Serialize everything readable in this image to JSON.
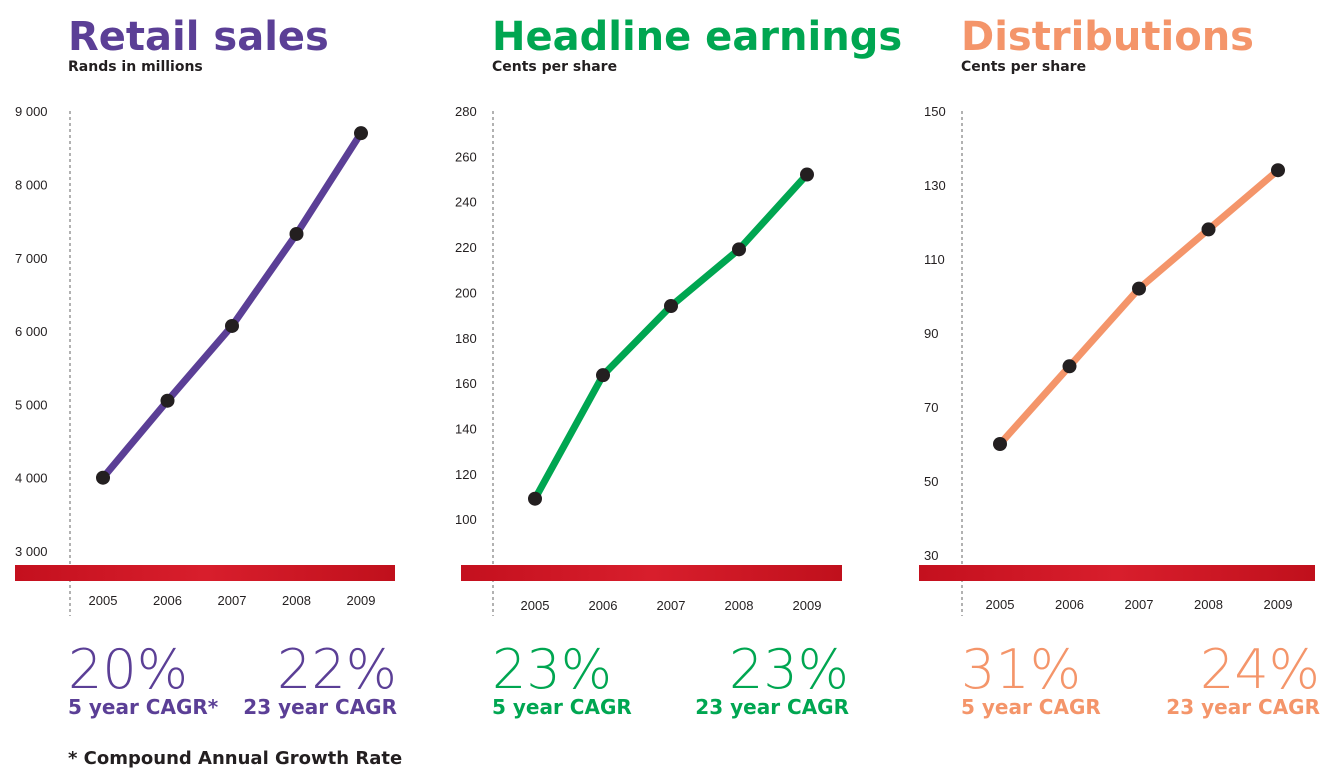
{
  "chart_data": [
    {
      "type": "line",
      "title": "Retail sales",
      "subtitle": "Rands in millions",
      "categories": [
        "2005",
        "2006",
        "2007",
        "2008",
        "2009"
      ],
      "values": [
        4000,
        5050,
        6070,
        7325,
        8700
      ],
      "color": "#5b3f96",
      "ylim": [
        2700,
        9200
      ],
      "yticks": [
        {
          "value": 3000,
          "label": "3 000"
        },
        {
          "value": 4000,
          "label": "4 000"
        },
        {
          "value": 5000,
          "label": "5 000"
        },
        {
          "value": 6000,
          "label": "6 000"
        },
        {
          "value": 7000,
          "label": "7 000"
        },
        {
          "value": 8000,
          "label": "8 000"
        },
        {
          "value": 9000,
          "label": "9 000"
        }
      ],
      "cagr": [
        {
          "value": 20,
          "label": "20%",
          "caption": "5 year CAGR*"
        },
        {
          "value": 22,
          "label": "22%",
          "caption": "23 year CAGR"
        }
      ]
    },
    {
      "type": "line",
      "title": "Headline earnings",
      "subtitle": "Cents per share",
      "categories": [
        "2005",
        "2006",
        "2007",
        "2008",
        "2009"
      ],
      "values": [
        109,
        163.5,
        194,
        219,
        252
      ],
      "color": "#00a651",
      "ylim": [
        78,
        285
      ],
      "yticks": [
        100,
        120,
        140,
        160,
        180,
        200,
        220,
        240,
        260,
        280
      ],
      "cagr": [
        {
          "value": 23,
          "label": "23%",
          "caption": "5 year CAGR"
        },
        {
          "value": 23,
          "label": "23%",
          "caption": "23 year CAGR"
        }
      ]
    },
    {
      "type": "line",
      "title": "Distributions",
      "subtitle": "Cents per share",
      "categories": [
        "2005",
        "2006",
        "2007",
        "2008",
        "2009"
      ],
      "values": [
        60,
        81,
        102,
        118,
        134
      ],
      "color": "#f4956a",
      "ylim": [
        26,
        153
      ],
      "yticks": [
        30,
        50,
        70,
        90,
        110,
        130,
        150
      ],
      "cagr": [
        {
          "value": 31,
          "label": "31%",
          "caption": "5 year CAGR"
        },
        {
          "value": 24,
          "label": "24%",
          "caption": "23 year CAGR"
        }
      ]
    }
  ],
  "footnote": "* Compound Annual Growth Rate"
}
